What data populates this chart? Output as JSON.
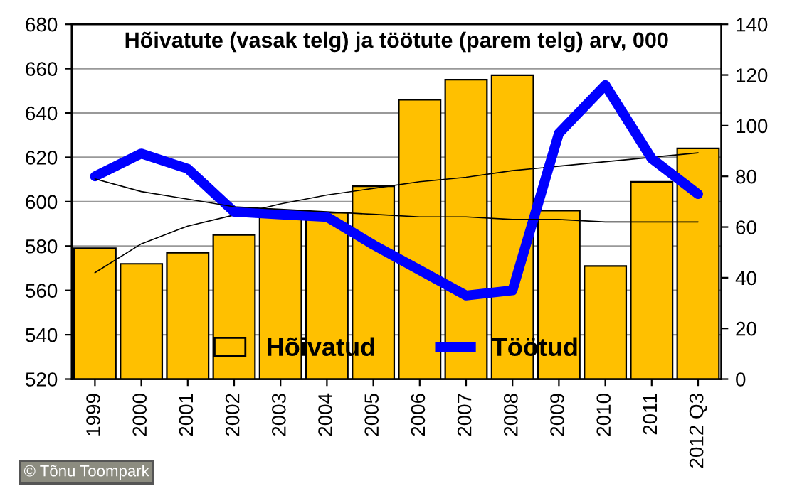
{
  "chart_data": {
    "type": "bar",
    "title": "Hõivatute (vasak telg) ja töötute (parem telg) arv, 000",
    "categories": [
      "1999",
      "2000",
      "2001",
      "2002",
      "2003",
      "2004",
      "2005",
      "2006",
      "2007",
      "2008",
      "2009",
      "2010",
      "2011",
      "2012 Q3"
    ],
    "series": [
      {
        "name": "Hõivatud",
        "color": "#ffc000",
        "values": [
          579,
          572,
          577,
          585,
          596,
          595,
          607,
          646,
          655,
          657,
          596,
          571,
          609,
          624
        ]
      },
      {
        "name": "Töötud",
        "type": "line",
        "axis": "y2",
        "color": "#0000ff",
        "values": [
          80,
          89,
          83,
          66,
          65,
          64,
          53,
          43,
          33,
          35,
          97,
          116,
          87,
          73
        ]
      },
      {
        "type": "line",
        "color": "#000000",
        "values": [
          568,
          581,
          589,
          594,
          599,
          603,
          606,
          609,
          611,
          614,
          616,
          618,
          620,
          622
        ]
      },
      {
        "type": "line",
        "axis": "y2",
        "color": "#000000",
        "values": [
          79,
          74,
          71,
          68,
          67,
          66,
          65,
          64,
          64,
          63,
          63,
          62,
          62,
          62
        ]
      }
    ],
    "ylim": [
      520,
      680
    ],
    "yticks": [
      520,
      540,
      560,
      580,
      600,
      620,
      640,
      660,
      680
    ],
    "y2lim": [
      0,
      140
    ],
    "y2ticks": [
      0,
      20,
      40,
      60,
      80,
      100,
      120,
      140
    ],
    "grid": "y",
    "legend": "bottom",
    "annotations": [
      "© Tõnu Toompark"
    ]
  }
}
